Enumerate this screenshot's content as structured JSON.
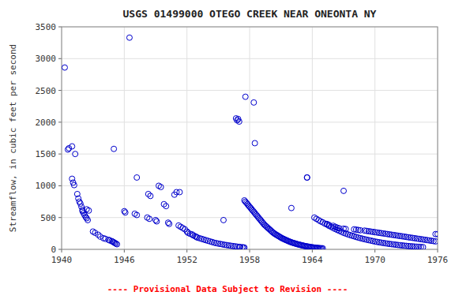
{
  "chart_data": {
    "type": "scatter",
    "title": "USGS 01499000 OTEGO CREEK NEAR ONEONTA NY",
    "ylabel": "Streamflow, in cubic feet per second",
    "annotation": "---- Provisional Data Subject to Revision ----",
    "xlim": [
      1940,
      1976
    ],
    "ylim": [
      0,
      3500
    ],
    "xticks": [
      1940,
      1946,
      1952,
      1958,
      1964,
      1970,
      1976
    ],
    "yticks": [
      0,
      500,
      1000,
      1500,
      2000,
      2500,
      3000,
      3500
    ],
    "color": "#0000CC",
    "marker": "circle-open",
    "grid": true,
    "x": [
      1940.3,
      1940.6,
      1940.7,
      1941.0,
      1941.1,
      1941.2,
      1941.0,
      1941.3,
      1941.5,
      1941.6,
      1941.7,
      1941.8,
      1941.9,
      1942.0,
      1942.0,
      1942.1,
      1942.2,
      1942.3,
      1942.4,
      1942.5,
      1942.4,
      1942.6,
      1943.0,
      1943.2,
      1943.5,
      1943.7,
      1944.0,
      1944.2,
      1944.5,
      1944.6,
      1944.8,
      1944.9,
      1945.0,
      1945.1,
      1945.2,
      1945.3,
      1945.0,
      1946.0,
      1946.1,
      1946.5,
      1947.2,
      1947.0,
      1947.2,
      1948.3,
      1948.5,
      1948.2,
      1948.4,
      1949.3,
      1949.5,
      1949.0,
      1949.1,
      1949.8,
      1950.0,
      1950.2,
      1950.3,
      1950.8,
      1951.0,
      1951.2,
      1951.4,
      1951.6,
      1951.8,
      1952.0,
      1952.1,
      1952.3,
      1952.5,
      1952.6,
      1952.8,
      1952.9,
      1953.0,
      1953.2,
      1953.4,
      1953.6,
      1953.8,
      1954.0,
      1954.2,
      1954.4,
      1954.6,
      1954.8,
      1955.0,
      1955.2,
      1955.4,
      1955.6,
      1955.8,
      1956.0,
      1956.2,
      1956.4,
      1956.6,
      1956.8,
      1957.0,
      1957.1,
      1957.3,
      1957.4,
      1957.5,
      1951.3,
      1955.5,
      1956.7,
      1956.9,
      1956.8,
      1957.0,
      1957.6,
      1957.5,
      1957.6,
      1957.7,
      1957.8,
      1957.9,
      1958.0,
      1958.1,
      1958.2,
      1958.3,
      1958.4,
      1958.5,
      1958.6,
      1958.7,
      1958.8,
      1958.5,
      1958.4,
      1958.9,
      1959.0,
      1959.1,
      1959.2,
      1959.3,
      1959.4,
      1959.5,
      1959.6,
      1959.7,
      1959.8,
      1959.9,
      1960.0,
      1960.1,
      1960.2,
      1960.3,
      1960.4,
      1960.5,
      1960.6,
      1960.7,
      1960.8,
      1960.9,
      1961.0,
      1961.1,
      1961.2,
      1961.3,
      1961.4,
      1961.5,
      1961.6,
      1961.7,
      1961.8,
      1961.9,
      1962.0,
      1962.1,
      1962.2,
      1962.3,
      1962.4,
      1962.5,
      1962.6,
      1962.7,
      1962.8,
      1962.9,
      1963.0,
      1963.1,
      1963.2,
      1963.3,
      1963.4,
      1963.5,
      1963.6,
      1963.7,
      1963.8,
      1963.9,
      1964.0,
      1964.1,
      1964.2,
      1964.3,
      1964.4,
      1964.5,
      1964.6,
      1964.7,
      1964.8,
      1964.9,
      1965.0,
      1962.0,
      1963.5,
      1963.5,
      1964.2,
      1964.4,
      1964.6,
      1964.8,
      1965.0,
      1965.2,
      1965.4,
      1965.6,
      1965.8,
      1966.0,
      1966.2,
      1966.4,
      1966.6,
      1966.8,
      1967.0,
      1967.2,
      1967.4,
      1967.6,
      1967.8,
      1968.0,
      1968.2,
      1968.4,
      1968.6,
      1968.8,
      1969.0,
      1969.2,
      1969.4,
      1969.6,
      1969.8,
      1970.0,
      1970.2,
      1970.4,
      1970.6,
      1970.8,
      1971.0,
      1971.2,
      1971.4,
      1971.6,
      1971.8,
      1972.0,
      1972.2,
      1972.4,
      1972.6,
      1972.8,
      1973.0,
      1973.2,
      1973.4,
      1973.6,
      1973.8,
      1974.0,
      1974.2,
      1974.4,
      1974.6,
      1967.0,
      1965.4,
      1965.6,
      1966.0,
      1966.2,
      1966.4,
      1966.6,
      1967.0,
      1967.2,
      1968.0,
      1968.2,
      1968.4,
      1968.6,
      1969.0,
      1969.2,
      1969.4,
      1969.6,
      1969.8,
      1970.0,
      1970.2,
      1970.4,
      1970.6,
      1970.8,
      1971.0,
      1971.2,
      1971.4,
      1971.6,
      1971.8,
      1972.0,
      1972.2,
      1972.4,
      1972.6,
      1972.8,
      1973.0,
      1973.2,
      1973.4,
      1973.6,
      1973.8,
      1974.0,
      1974.2,
      1974.4,
      1974.6,
      1974.8,
      1975.0,
      1975.2,
      1975.4,
      1975.6,
      1975.8,
      1975.8,
      1976.0
    ],
    "values": [
      2860,
      1570,
      1590,
      1110,
      1050,
      1010,
      1620,
      1500,
      870,
      800,
      750,
      720,
      670,
      620,
      600,
      570,
      540,
      510,
      490,
      460,
      630,
      610,
      280,
      260,
      230,
      200,
      175,
      165,
      150,
      140,
      130,
      120,
      110,
      100,
      90,
      80,
      1580,
      600,
      580,
      3330,
      1130,
      560,
      540,
      870,
      840,
      500,
      480,
      1000,
      980,
      460,
      440,
      710,
      680,
      420,
      400,
      860,
      900,
      375,
      355,
      335,
      315,
      280,
      260,
      245,
      235,
      220,
      205,
      195,
      185,
      175,
      165,
      155,
      145,
      135,
      125,
      115,
      105,
      98,
      90,
      85,
      78,
      72,
      67,
      62,
      57,
      52,
      48,
      43,
      39,
      36,
      33,
      30,
      28,
      900,
      460,
      2060,
      2050,
      2030,
      2010,
      2400,
      770,
      750,
      730,
      710,
      690,
      670,
      650,
      630,
      610,
      590,
      570,
      550,
      530,
      510,
      1670,
      2310,
      490,
      470,
      450,
      430,
      410,
      390,
      375,
      360,
      345,
      330,
      315,
      300,
      285,
      270,
      258,
      245,
      235,
      225,
      215,
      205,
      195,
      185,
      175,
      168,
      160,
      152,
      145,
      138,
      130,
      123,
      117,
      110,
      105,
      100,
      95,
      90,
      85,
      80,
      76,
      72,
      68,
      64,
      60,
      56,
      52,
      49,
      46,
      43,
      40,
      37,
      34,
      32,
      30,
      28,
      26,
      24,
      22,
      21,
      19,
      18,
      17,
      16,
      650,
      1130,
      1130,
      500,
      480,
      460,
      440,
      425,
      405,
      390,
      370,
      355,
      335,
      320,
      305,
      290,
      275,
      260,
      248,
      236,
      225,
      215,
      205,
      195,
      185,
      176,
      168,
      160,
      152,
      145,
      138,
      130,
      123,
      117,
      111,
      106,
      100,
      95,
      90,
      85,
      81,
      77,
      73,
      69,
      65,
      62,
      58,
      55,
      52,
      49,
      47,
      44,
      42,
      40,
      37,
      35,
      920,
      400,
      385,
      370,
      355,
      340,
      330,
      325,
      320,
      315,
      310,
      305,
      300,
      295,
      290,
      285,
      280,
      275,
      270,
      265,
      260,
      255,
      250,
      245,
      240,
      235,
      230,
      225,
      220,
      215,
      210,
      205,
      200,
      195,
      190,
      185,
      180,
      175,
      170,
      165,
      160,
      155,
      150,
      145,
      140,
      135,
      130,
      125,
      240,
      240
    ]
  }
}
